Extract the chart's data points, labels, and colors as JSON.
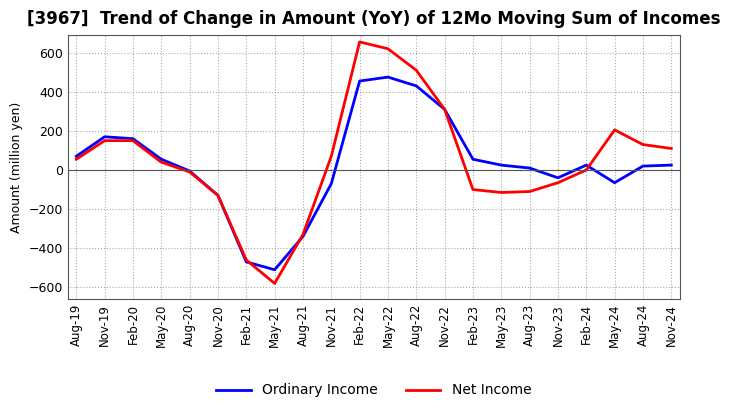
{
  "title": "[3967]  Trend of Change in Amount (YoY) of 12Mo Moving Sum of Incomes",
  "ylabel": "Amount (million yen)",
  "ylim": [
    -660,
    690
  ],
  "yticks": [
    -600,
    -400,
    -200,
    0,
    200,
    400,
    600
  ],
  "legend_labels": [
    "Ordinary Income",
    "Net Income"
  ],
  "line_colors": [
    "#0000ff",
    "#ff0000"
  ],
  "x_labels": [
    "Aug-19",
    "Nov-19",
    "Feb-20",
    "May-20",
    "Aug-20",
    "Nov-20",
    "Feb-21",
    "May-21",
    "Aug-21",
    "Nov-21",
    "Feb-22",
    "May-22",
    "Aug-22",
    "Nov-22",
    "Feb-23",
    "May-23",
    "Aug-23",
    "Nov-23",
    "Feb-24",
    "May-24",
    "Aug-24",
    "Nov-24"
  ],
  "ordinary_income": [
    70,
    170,
    160,
    55,
    -5,
    -130,
    -470,
    -510,
    -340,
    -70,
    455,
    475,
    430,
    310,
    55,
    25,
    10,
    -40,
    25,
    -65,
    20,
    25
  ],
  "net_income": [
    55,
    150,
    150,
    40,
    -10,
    -130,
    -460,
    -580,
    -330,
    70,
    655,
    620,
    510,
    310,
    -100,
    -115,
    -110,
    -65,
    0,
    205,
    130,
    110
  ],
  "background_color": "#ffffff",
  "grid_color": "#aaaaaa"
}
